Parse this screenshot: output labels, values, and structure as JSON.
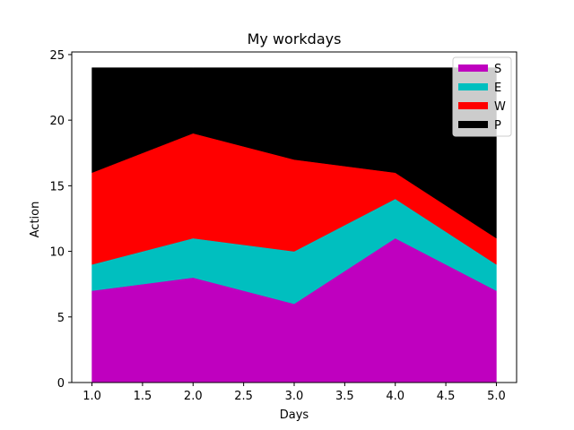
{
  "chart_data": {
    "type": "area",
    "stacked": true,
    "title": "My workdays",
    "xlabel": "Days",
    "ylabel": "Action",
    "x": [
      1,
      2,
      3,
      4,
      5
    ],
    "xlim": [
      0.8,
      5.2
    ],
    "ylim": [
      0,
      25.2
    ],
    "xticks": [
      "1.0",
      "1.5",
      "2.0",
      "2.5",
      "3.0",
      "3.5",
      "4.0",
      "4.5",
      "5.0"
    ],
    "yticks": [
      "0",
      "5",
      "10",
      "15",
      "20",
      "25"
    ],
    "grid": false,
    "legend_position": "top-right",
    "series": [
      {
        "name": "S",
        "color": "#bf00bf",
        "values": [
          7,
          8,
          6,
          11,
          7
        ]
      },
      {
        "name": "E",
        "color": "#00bfbf",
        "values": [
          2,
          3,
          4,
          3,
          2
        ]
      },
      {
        "name": "W",
        "color": "#ff0000",
        "values": [
          7,
          8,
          7,
          2,
          2
        ]
      },
      {
        "name": "P",
        "color": "#000000",
        "values": [
          8,
          5,
          7,
          8,
          13
        ]
      }
    ]
  }
}
